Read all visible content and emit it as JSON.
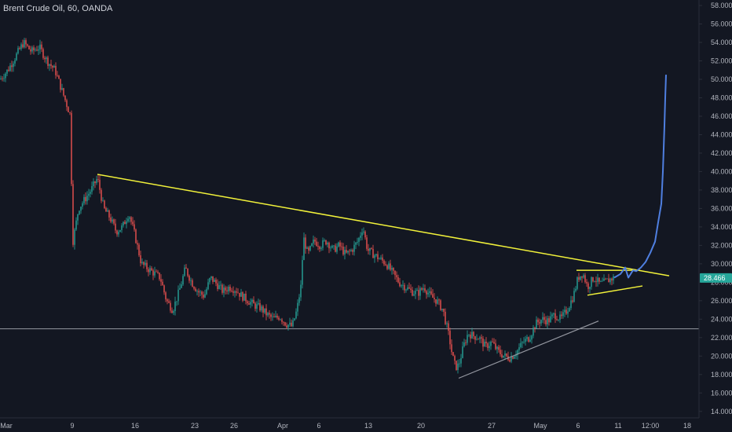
{
  "header": {
    "symbol_title": "Brent Crude Oil, 60, OANDA"
  },
  "colors": {
    "background": "#131722",
    "candle_up": "#26a69a",
    "candle_down": "#ef5350",
    "trendline": "#f2f23a",
    "support_line": "#9598a1",
    "forecast": "#4f7fe0",
    "price_tag": "#26a69a"
  },
  "chart_data": {
    "type": "candlestick",
    "title": "Brent Crude Oil, 60, OANDA",
    "x_tick_labels": [
      "Mar",
      "9",
      "16",
      "23",
      "26",
      "Apr",
      "6",
      "13",
      "20",
      "27",
      "May",
      "6",
      "11",
      "12:00",
      "18"
    ],
    "y_tick_labels": [
      "58.000",
      "56.000",
      "54.000",
      "52.000",
      "50.000",
      "48.000",
      "46.000",
      "44.000",
      "42.000",
      "40.000",
      "38.000",
      "36.000",
      "34.000",
      "32.000",
      "30.000",
      "28.000",
      "26.000",
      "24.000",
      "22.000",
      "20.000",
      "18.000",
      "16.000",
      "14.000"
    ],
    "ylim": [
      13.3,
      58.6
    ],
    "last_price": "28.466",
    "price_path": [
      [
        0,
        50
      ],
      [
        10,
        51
      ],
      [
        20,
        52.5
      ],
      [
        30,
        54
      ],
      [
        40,
        53
      ],
      [
        50,
        53.5
      ],
      [
        60,
        52
      ],
      [
        70,
        51
      ],
      [
        78,
        49
      ],
      [
        84,
        47.5
      ],
      [
        90,
        46
      ],
      [
        92,
        32
      ],
      [
        100,
        36
      ],
      [
        108,
        37
      ],
      [
        116,
        38
      ],
      [
        124,
        39.3
      ],
      [
        132,
        36
      ],
      [
        140,
        35
      ],
      [
        148,
        33.5
      ],
      [
        156,
        34
      ],
      [
        164,
        35.5
      ],
      [
        172,
        33
      ],
      [
        180,
        30
      ],
      [
        188,
        29.5
      ],
      [
        196,
        29
      ],
      [
        204,
        28.5
      ],
      [
        212,
        26
      ],
      [
        220,
        25
      ],
      [
        228,
        27
      ],
      [
        236,
        29.5
      ],
      [
        244,
        28
      ],
      [
        252,
        27
      ],
      [
        260,
        26.5
      ],
      [
        268,
        28.5
      ],
      [
        276,
        27.8
      ],
      [
        284,
        27
      ],
      [
        292,
        27.5
      ],
      [
        300,
        27.2
      ],
      [
        308,
        26.5
      ],
      [
        316,
        26
      ],
      [
        324,
        25.5
      ],
      [
        332,
        25.2
      ],
      [
        340,
        24.5
      ],
      [
        348,
        24
      ],
      [
        356,
        24.3
      ],
      [
        364,
        23.5
      ],
      [
        372,
        23.2
      ],
      [
        378,
        25
      ],
      [
        384,
        28
      ],
      [
        386,
        33
      ],
      [
        392,
        31
      ],
      [
        400,
        32.5
      ],
      [
        408,
        32
      ],
      [
        416,
        32.5
      ],
      [
        424,
        31.5
      ],
      [
        432,
        32
      ],
      [
        440,
        31
      ],
      [
        448,
        31.5
      ],
      [
        456,
        32.5
      ],
      [
        462,
        34
      ],
      [
        468,
        31.5
      ],
      [
        476,
        31
      ],
      [
        484,
        30.5
      ],
      [
        492,
        30
      ],
      [
        500,
        29
      ],
      [
        508,
        28
      ],
      [
        516,
        27.5
      ],
      [
        524,
        27
      ],
      [
        532,
        26.8
      ],
      [
        540,
        27.5
      ],
      [
        548,
        26.5
      ],
      [
        556,
        26
      ],
      [
        564,
        25
      ],
      [
        572,
        22
      ],
      [
        576,
        20
      ],
      [
        580,
        18.8
      ],
      [
        584,
        19
      ],
      [
        590,
        21
      ],
      [
        596,
        22.5
      ],
      [
        602,
        22.2
      ],
      [
        610,
        22
      ],
      [
        618,
        21
      ],
      [
        626,
        21.5
      ],
      [
        634,
        20.5
      ],
      [
        642,
        20
      ],
      [
        650,
        19.8
      ],
      [
        658,
        20.5
      ],
      [
        666,
        21.5
      ],
      [
        674,
        22
      ],
      [
        682,
        23.5
      ],
      [
        690,
        24
      ],
      [
        698,
        23.8
      ],
      [
        706,
        24.5
      ],
      [
        714,
        24
      ],
      [
        722,
        25
      ],
      [
        730,
        26.5
      ],
      [
        736,
        28.5
      ],
      [
        742,
        29
      ],
      [
        748,
        27.5
      ],
      [
        756,
        28.5
      ],
      [
        764,
        27.8
      ],
      [
        770,
        28
      ],
      [
        776,
        28.3
      ],
      [
        782,
        28.5
      ]
    ],
    "forecast_path": [
      [
        782,
        28.5
      ],
      [
        790,
        28.9
      ],
      [
        796,
        29.6
      ],
      [
        800,
        28.5
      ],
      [
        806,
        29.3
      ],
      [
        810,
        29.2
      ],
      [
        816,
        29.6
      ],
      [
        822,
        30.2
      ],
      [
        828,
        31.2
      ],
      [
        834,
        32.4
      ],
      [
        838,
        34.5
      ],
      [
        842,
        36.5
      ],
      [
        844,
        40
      ],
      [
        846,
        45
      ],
      [
        847,
        48
      ],
      [
        848,
        50.5
      ]
    ],
    "trendlines": [
      {
        "name": "descending-resistance",
        "from": [
          124,
          39.7
        ],
        "to": [
          852,
          28.7
        ]
      },
      {
        "name": "triangle-top",
        "from": [
          734,
          29.3
        ],
        "to": [
          815,
          29.3
        ]
      },
      {
        "name": "triangle-bottom",
        "from": [
          748,
          26.6
        ],
        "to": [
          818,
          27.6
        ]
      },
      {
        "name": "rising-support",
        "from": [
          584,
          17.6
        ],
        "to": [
          762,
          23.8
        ]
      }
    ],
    "support_level": 22.95,
    "grid": false,
    "legend": "none"
  }
}
